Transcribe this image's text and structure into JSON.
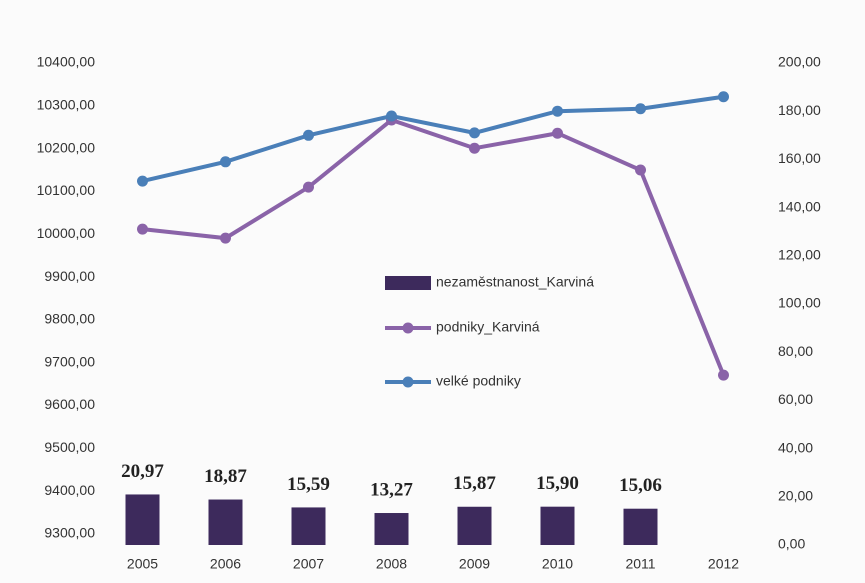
{
  "chart_data": {
    "type": "combo",
    "categories": [
      "2005",
      "2006",
      "2007",
      "2008",
      "2009",
      "2010",
      "2011",
      "2012"
    ],
    "series": [
      {
        "name": "nezaměstnanost_Karviná",
        "type": "bar",
        "axis": "y2",
        "color": "#3d2a5c",
        "values": [
          20.97,
          18.87,
          15.59,
          13.27,
          15.87,
          15.9,
          15.06,
          null
        ],
        "value_labels": [
          "20,97",
          "18,87",
          "15,59",
          "13,27",
          "15,87",
          "15,90",
          "15,06",
          null
        ]
      },
      {
        "name": "podniky_Karviná",
        "type": "line",
        "axis": "y",
        "color": "#8a63a8",
        "values": [
          10012,
          9991,
          10110,
          10267,
          10201,
          10236,
          10150,
          9671
        ]
      },
      {
        "name": "velké podniky",
        "type": "line",
        "axis": "y2",
        "color": "#4a7fb8",
        "values": [
          151,
          159,
          170,
          178,
          171,
          180,
          181,
          186
        ]
      }
    ],
    "ylim": [
      9300,
      10400
    ],
    "yticks": [
      {
        "value": 9300,
        "label": "9300,00"
      },
      {
        "value": 9400,
        "label": "9400,00"
      },
      {
        "value": 9500,
        "label": "9500,00"
      },
      {
        "value": 9600,
        "label": "9600,00"
      },
      {
        "value": 9700,
        "label": "9700,00"
      },
      {
        "value": 9800,
        "label": "9800,00"
      },
      {
        "value": 9900,
        "label": "9900,00"
      },
      {
        "value": 10000,
        "label": "10000,00"
      },
      {
        "value": 10100,
        "label": "10100,00"
      },
      {
        "value": 10200,
        "label": "10200,00"
      },
      {
        "value": 10300,
        "label": "10300,00"
      },
      {
        "value": 10400,
        "label": "10400,00"
      }
    ],
    "y2lim": [
      0,
      200
    ],
    "y2ticks": [
      {
        "value": 0,
        "label": "0,00"
      },
      {
        "value": 20,
        "label": "20,00"
      },
      {
        "value": 40,
        "label": "40,00"
      },
      {
        "value": 60,
        "label": "60,00"
      },
      {
        "value": 80,
        "label": "80,00"
      },
      {
        "value": 100,
        "label": "100,00"
      },
      {
        "value": 120,
        "label": "120,00"
      },
      {
        "value": 140,
        "label": "140,00"
      },
      {
        "value": 160,
        "label": "160,00"
      },
      {
        "value": 180,
        "label": "180,00"
      },
      {
        "value": 200,
        "label": "200,00"
      }
    ]
  }
}
